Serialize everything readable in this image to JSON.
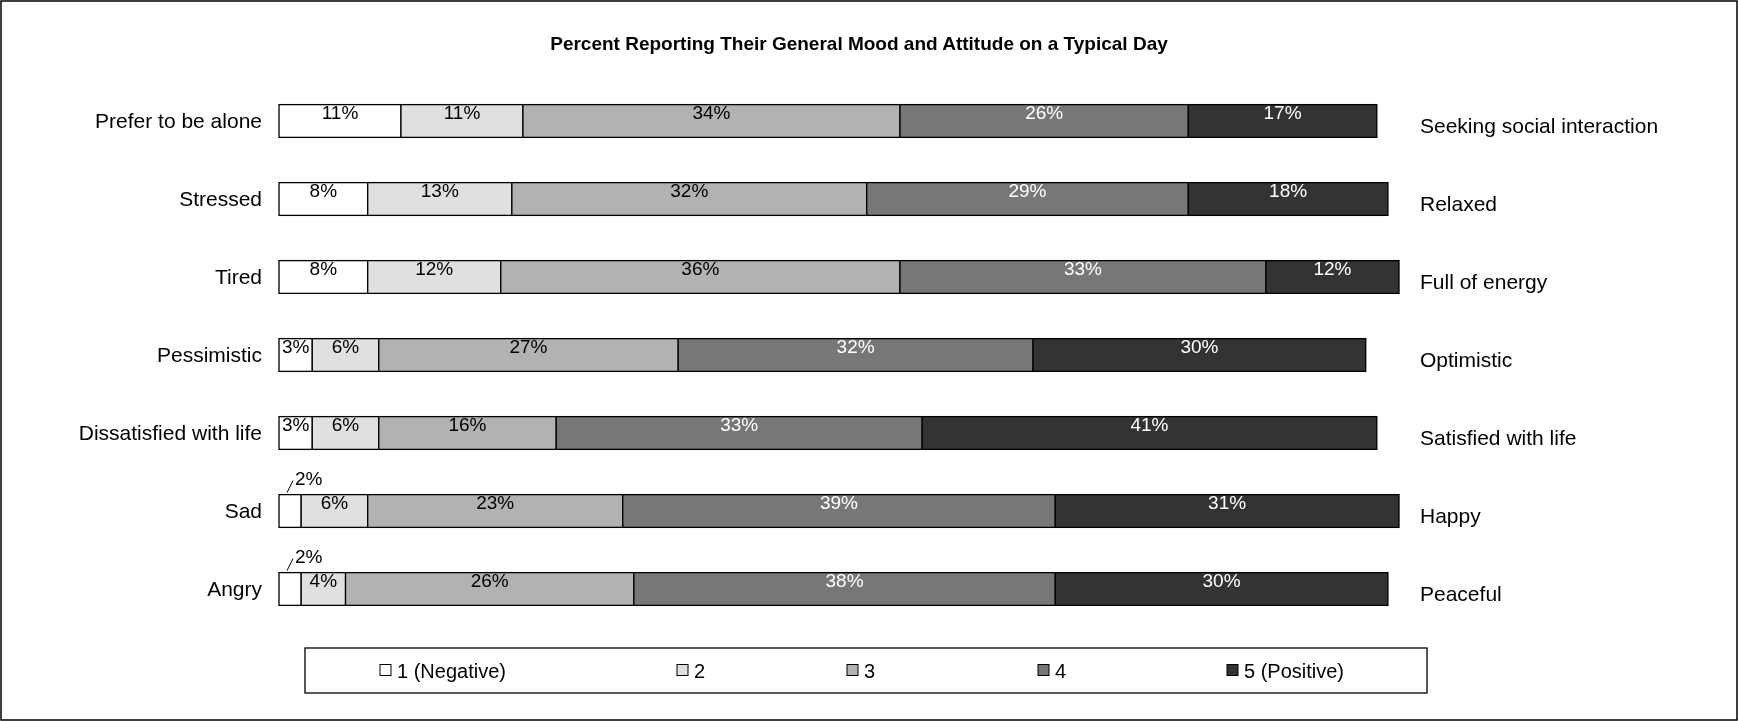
{
  "chart_data": {
    "type": "bar",
    "orientation": "horizontal",
    "stacked": true,
    "title": "Percent Reporting Their General Mood and Attitude  on a Typical Day",
    "categories": [
      "Prefer to be alone",
      "Stressed",
      "Tired",
      "Pessimistic",
      "Dissatisfied with life",
      "Sad",
      "Angry"
    ],
    "annotations": [
      "Seeking social interaction",
      "Relaxed",
      "Full of energy",
      "Optimistic",
      "Satisfied with life",
      "Happy",
      "Peaceful"
    ],
    "legend": "bottom",
    "series": [
      {
        "name": "1 (Negative)",
        "color": "#ffffff",
        "values": [
          11,
          8,
          8,
          3,
          3,
          2,
          2
        ],
        "value_labels": [
          "11%",
          "8%",
          "8%",
          "3%",
          "3%",
          "2%",
          "2%"
        ]
      },
      {
        "name": "2",
        "color": "#e0e0e0",
        "values": [
          11,
          13,
          12,
          6,
          6,
          6,
          4
        ],
        "value_labels": [
          "11%",
          "13%",
          "12%",
          "6%",
          "6%",
          "6%",
          "4%"
        ]
      },
      {
        "name": "3",
        "color": "#b2b2b2",
        "values": [
          34,
          32,
          36,
          27,
          16,
          23,
          26
        ],
        "value_labels": [
          "34%",
          "32%",
          "36%",
          "27%",
          "16%",
          "23%",
          "26%"
        ]
      },
      {
        "name": "4",
        "color": "#777777",
        "values": [
          26,
          29,
          33,
          32,
          33,
          39,
          38
        ],
        "value_labels": [
          "26%",
          "29%",
          "33%",
          "32%",
          "33%",
          "39%",
          "38%"
        ]
      },
      {
        "name": "5 (Positive)",
        "color": "#333333",
        "values": [
          17,
          18,
          12,
          30,
          41,
          31,
          30
        ],
        "value_labels": [
          "17%",
          "18%",
          "12%",
          "30%",
          "41%",
          "31%",
          "30%"
        ]
      }
    ]
  }
}
